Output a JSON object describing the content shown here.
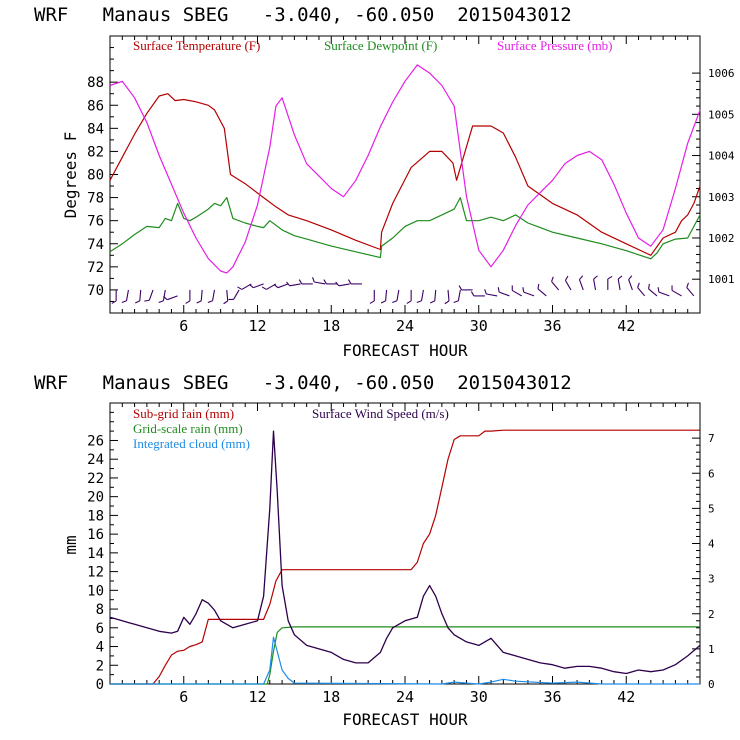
{
  "colors": {
    "background": "#ffffff",
    "axis": "#000000",
    "temperature": "#b40000",
    "dewpoint": "#1e8c1e",
    "pressure": "#e61ee6",
    "subgrid_rain": "#b40000",
    "gridscale_rain": "#1e8c1e",
    "cloud": "#1e8ce6",
    "wind": "#2d004b",
    "wind_barbs": "#3c0064"
  },
  "chart_data": [
    {
      "type": "line",
      "title": "WRF   Manaus SBEG   -3.040, -60.050  2015043012",
      "xlabel": "FORECAST HOUR",
      "ylabel": "Degrees F",
      "y2label": "",
      "xlim": [
        0,
        48
      ],
      "ylim": [
        68,
        92
      ],
      "y2lim": [
        1000.18,
        1006.9
      ],
      "x_ticks": [
        6,
        12,
        18,
        24,
        30,
        36,
        42
      ],
      "y_ticks": [
        70,
        72,
        74,
        76,
        78,
        80,
        82,
        84,
        86,
        88
      ],
      "y2_ticks": [
        1001,
        1002,
        1003,
        1004,
        1005,
        1006
      ],
      "legend": [
        "Surface Temperature (F)",
        "Surface Dewpoint (F)",
        "Surface Pressure (mb)"
      ],
      "legend_placement": "top-left",
      "series": [
        {
          "name": "Surface Temperature (F)",
          "axis": "left",
          "x": [
            0,
            1,
            2,
            3,
            4,
            4.7,
            5.3,
            6,
            7,
            8,
            8.5,
            9.3,
            9.8,
            11,
            12.5,
            13.5,
            14.5,
            16,
            18,
            20,
            22,
            22.1,
            23,
            24.5,
            26,
            27,
            27.9,
            28.2,
            29.5,
            31,
            32,
            33,
            34,
            36,
            38,
            40,
            42,
            44,
            45,
            46,
            46.5,
            47,
            47.5,
            48
          ],
          "values": [
            79.5,
            81.5,
            83.5,
            85.3,
            86.8,
            87.0,
            86.4,
            86.5,
            86.3,
            86.0,
            85.6,
            84.0,
            80.0,
            79.2,
            78.0,
            77.2,
            76.5,
            76.0,
            75.2,
            74.3,
            73.5,
            75.0,
            77.5,
            80.6,
            82.0,
            82.0,
            81.0,
            79.5,
            84.2,
            84.2,
            83.6,
            81.5,
            79.0,
            77.5,
            76.5,
            75.0,
            74.0,
            73.0,
            74.5,
            75.0,
            76.0,
            76.5,
            77.5,
            79.0
          ]
        },
        {
          "name": "Surface Dewpoint (F)",
          "axis": "left",
          "x": [
            0,
            1,
            2,
            3,
            4,
            4.5,
            5,
            5.5,
            6,
            6.5,
            7,
            8,
            8.5,
            9,
            9.5,
            10,
            11,
            12,
            12.5,
            13,
            14,
            15,
            16,
            18,
            20,
            22,
            22.1,
            23,
            24,
            25,
            26,
            27,
            28,
            28.5,
            29,
            30,
            31,
            32,
            33,
            34,
            35,
            36,
            38,
            40,
            42,
            44,
            44.5,
            45,
            46,
            47,
            48
          ],
          "values": [
            73.3,
            74.0,
            74.8,
            75.5,
            75.4,
            76.2,
            76.0,
            77.5,
            76.2,
            76.0,
            76.3,
            77.0,
            77.5,
            77.3,
            78.0,
            76.2,
            75.8,
            75.5,
            75.4,
            76.0,
            75.2,
            74.7,
            74.4,
            73.8,
            73.3,
            72.8,
            73.8,
            74.5,
            75.5,
            76.0,
            76.0,
            76.5,
            77.0,
            78.0,
            76.0,
            76.0,
            76.3,
            76.0,
            76.5,
            75.8,
            75.4,
            75.0,
            74.5,
            74.0,
            73.4,
            72.7,
            73.2,
            74.0,
            74.4,
            74.5,
            76.5
          ]
        },
        {
          "name": "Surface Pressure (mb)",
          "axis": "right",
          "x": [
            0,
            1,
            2,
            3,
            4,
            5,
            6,
            7,
            8,
            9,
            9.5,
            10,
            11,
            12,
            13,
            13.5,
            14,
            15,
            16,
            17,
            18,
            19,
            20,
            21,
            22,
            23,
            24,
            25,
            26,
            27,
            28,
            29,
            30,
            31,
            32,
            33,
            34,
            35,
            36,
            37,
            38,
            39,
            40,
            41,
            42,
            43,
            44,
            45,
            46,
            47,
            48
          ],
          "values": [
            1005.7,
            1005.8,
            1005.4,
            1004.8,
            1004.0,
            1003.3,
            1002.6,
            1002.0,
            1001.5,
            1001.2,
            1001.15,
            1001.3,
            1001.9,
            1002.8,
            1004.2,
            1005.2,
            1005.4,
            1004.5,
            1003.8,
            1003.5,
            1003.2,
            1003.0,
            1003.4,
            1004.0,
            1004.7,
            1005.3,
            1005.8,
            1006.2,
            1006.0,
            1005.7,
            1005.2,
            1003.0,
            1001.7,
            1001.3,
            1001.7,
            1002.3,
            1002.8,
            1003.1,
            1003.4,
            1003.8,
            1004.0,
            1004.1,
            1003.9,
            1003.3,
            1002.6,
            1002.0,
            1001.8,
            1002.2,
            1003.2,
            1004.3,
            1005.1
          ]
        }
      ],
      "wind_barbs": {
        "hours": [
          0,
          1,
          2,
          3,
          4,
          5,
          6,
          7,
          8,
          9,
          10,
          11,
          12,
          13,
          14,
          15,
          16,
          17,
          18,
          19,
          20,
          21,
          22,
          23,
          24,
          25,
          26,
          27,
          28,
          29,
          30,
          31,
          32,
          33,
          34,
          35,
          36,
          37,
          38,
          39,
          40,
          41,
          42,
          43,
          44,
          45,
          46,
          47
        ],
        "direction_deg": [
          90,
          100,
          95,
          110,
          100,
          160,
          90,
          95,
          100,
          85,
          120,
          150,
          160,
          150,
          160,
          170,
          180,
          190,
          180,
          170,
          180,
          90,
          95,
          100,
          90,
          100,
          95,
          85,
          100,
          180,
          180,
          190,
          200,
          210,
          200,
          220,
          230,
          240,
          250,
          260,
          270,
          260,
          250,
          230,
          220,
          200,
          210,
          230
        ],
        "row_offset": [
          0,
          0,
          0,
          0,
          0,
          -1,
          0,
          0,
          0,
          0,
          0,
          1,
          1,
          1,
          1,
          1,
          1,
          1,
          1,
          1,
          1,
          0,
          0,
          0,
          0,
          0,
          0,
          0,
          0,
          0,
          -1,
          -1,
          -1,
          -1,
          -1,
          -1,
          0,
          0,
          0,
          0,
          0,
          0,
          0,
          -1,
          -1,
          -1,
          -1,
          -1
        ]
      }
    },
    {
      "type": "line",
      "title": "WRF   Manaus SBEG   -3.040, -60.050  2015043012",
      "xlabel": "FORECAST HOUR",
      "ylabel": "mm",
      "y2label": "",
      "xlim": [
        0,
        48
      ],
      "ylim": [
        0,
        30
      ],
      "y2lim": [
        0,
        8
      ],
      "x_ticks": [
        6,
        12,
        18,
        24,
        30,
        36,
        42
      ],
      "y_ticks": [
        0,
        2,
        4,
        6,
        8,
        10,
        12,
        14,
        16,
        18,
        20,
        22,
        24,
        26
      ],
      "y2_ticks": [
        0,
        1,
        2,
        3,
        4,
        5,
        6,
        7
      ],
      "legend": [
        "Sub-grid rain (mm)",
        "Surface Wind Speed (m/s)",
        "Grid-scale rain (mm)",
        "Integrated cloud (mm)"
      ],
      "legend_placement": "top-left",
      "series": [
        {
          "name": "Sub-grid rain (mm)",
          "axis": "left",
          "x": [
            0,
            3.5,
            4,
            4.5,
            5,
            5.5,
            6,
            6.5,
            7,
            7.5,
            8,
            12.5,
            13,
            13.5,
            14,
            24.5,
            25,
            25.5,
            26,
            26.5,
            27,
            27.5,
            28,
            28.5,
            30,
            30.5,
            31,
            32,
            40,
            48
          ],
          "values": [
            0,
            0,
            0.8,
            2.0,
            3.1,
            3.5,
            3.6,
            4.0,
            4.2,
            4.5,
            6.9,
            6.9,
            8.5,
            11.0,
            12.2,
            12.2,
            13.0,
            15.0,
            16.0,
            18.0,
            21.0,
            24.0,
            26.1,
            26.5,
            26.5,
            27.0,
            27.0,
            27.1,
            27.1,
            27.1
          ]
        },
        {
          "name": "Grid-scale rain (mm)",
          "axis": "left",
          "x": [
            0,
            12.8,
            13.0,
            13.3,
            13.6,
            14.0,
            15,
            48
          ],
          "values": [
            0,
            0,
            1.0,
            3.5,
            5.5,
            6.0,
            6.1,
            6.1
          ]
        },
        {
          "name": "Integrated cloud (mm)",
          "axis": "left",
          "x": [
            0,
            12.5,
            13.0,
            13.3,
            13.7,
            14.0,
            14.5,
            15.0,
            27,
            28,
            29,
            30,
            31,
            32,
            33,
            36,
            38,
            40,
            48
          ],
          "values": [
            0,
            0,
            1.5,
            5.0,
            3.0,
            1.5,
            0.6,
            0.1,
            0,
            0.2,
            0.1,
            0,
            0.2,
            0.5,
            0.3,
            0.1,
            0.2,
            0,
            0
          ]
        },
        {
          "name": "Surface Wind Speed (m/s)",
          "axis": "right",
          "x": [
            0,
            1,
            2,
            3,
            4,
            5,
            5.5,
            6,
            6.5,
            7,
            7.5,
            8,
            8.5,
            9,
            10,
            11,
            12,
            12.5,
            13,
            13.3,
            13.6,
            14,
            14.5,
            15,
            16,
            17,
            18,
            19,
            20,
            21,
            22,
            22.5,
            23,
            24,
            25,
            25.5,
            26,
            26.5,
            27,
            27.5,
            28,
            29,
            30,
            31,
            32,
            33,
            34,
            35,
            36,
            37,
            38,
            39,
            40,
            41,
            42,
            43,
            44,
            45,
            46,
            47,
            48
          ],
          "values": [
            1.9,
            1.8,
            1.7,
            1.6,
            1.5,
            1.45,
            1.5,
            1.9,
            1.7,
            2.0,
            2.4,
            2.3,
            2.1,
            1.8,
            1.6,
            1.7,
            1.8,
            2.5,
            5.0,
            7.2,
            5.5,
            2.8,
            1.8,
            1.4,
            1.1,
            1.0,
            0.9,
            0.7,
            0.6,
            0.6,
            0.9,
            1.3,
            1.6,
            1.8,
            1.9,
            2.5,
            2.8,
            2.5,
            2.0,
            1.6,
            1.4,
            1.2,
            1.1,
            1.3,
            0.9,
            0.8,
            0.7,
            0.6,
            0.55,
            0.45,
            0.5,
            0.5,
            0.45,
            0.35,
            0.3,
            0.4,
            0.35,
            0.4,
            0.55,
            0.8,
            1.1
          ]
        }
      ]
    }
  ]
}
